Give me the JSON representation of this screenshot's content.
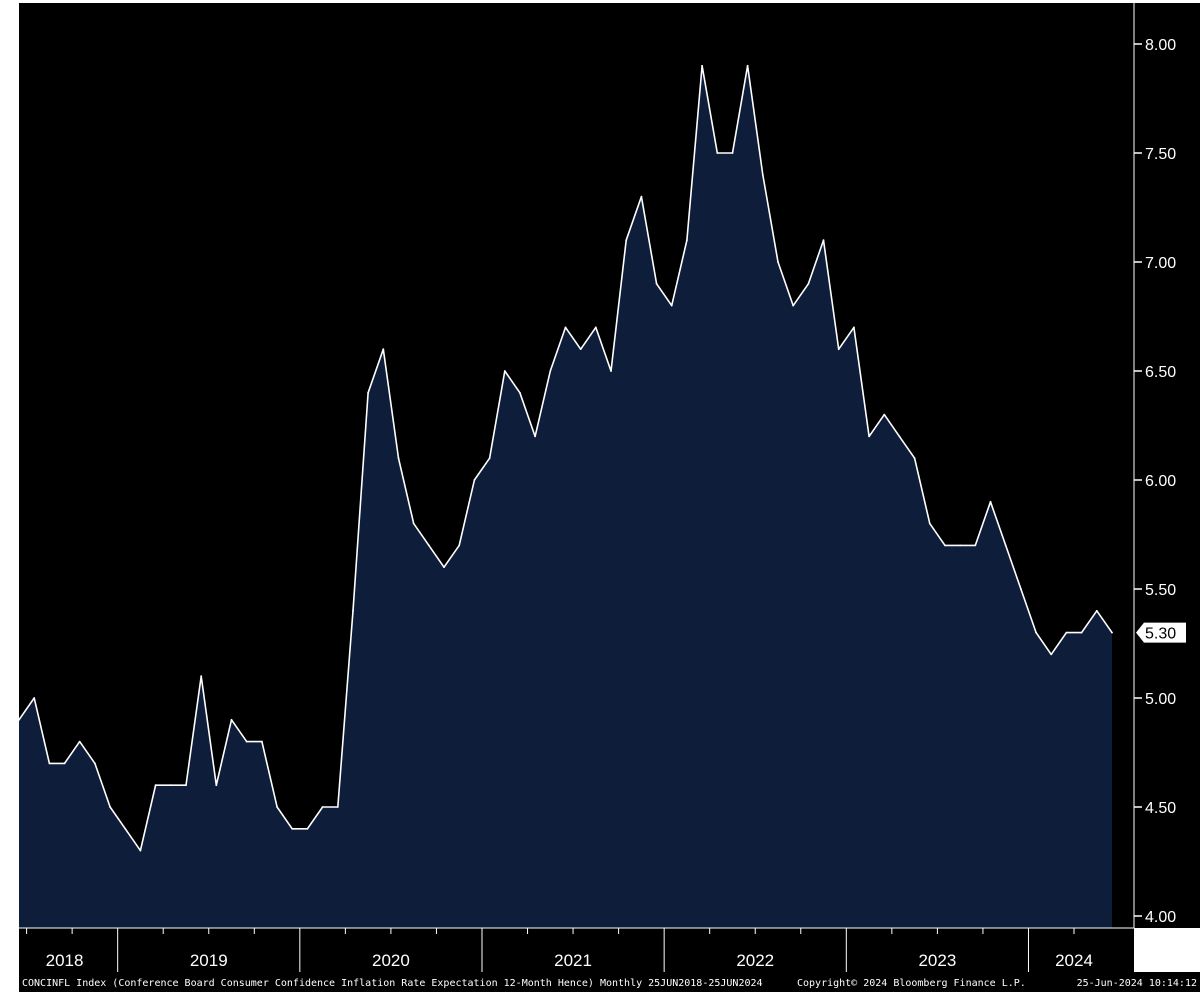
{
  "chart_data": {
    "type": "area",
    "title": "",
    "xlabel": "",
    "ylabel": "",
    "ylim": [
      4.0,
      8.0
    ],
    "yticks": [
      "8.00",
      "7.50",
      "7.00",
      "6.50",
      "6.00",
      "5.50",
      "5.00",
      "4.50",
      "4.00"
    ],
    "xlim": [
      "2018-06",
      "2024-06"
    ],
    "year_labels": [
      "2018",
      "2019",
      "2020",
      "2021",
      "2022",
      "2023",
      "2024"
    ],
    "last_value_label": "5.30",
    "grid": false,
    "legend": "none",
    "colors": {
      "background": "#000000",
      "area_fill": "#0e1d3a",
      "line": "#ffffff",
      "axis_bg": "#000000",
      "frame": "#ffffff"
    },
    "x": [
      "2018-06",
      "2018-07",
      "2018-08",
      "2018-09",
      "2018-10",
      "2018-11",
      "2018-12",
      "2019-01",
      "2019-02",
      "2019-03",
      "2019-04",
      "2019-05",
      "2019-06",
      "2019-07",
      "2019-08",
      "2019-09",
      "2019-10",
      "2019-11",
      "2019-12",
      "2020-01",
      "2020-02",
      "2020-03",
      "2020-04",
      "2020-05",
      "2020-06",
      "2020-07",
      "2020-08",
      "2020-09",
      "2020-10",
      "2020-11",
      "2020-12",
      "2021-01",
      "2021-02",
      "2021-03",
      "2021-04",
      "2021-05",
      "2021-06",
      "2021-07",
      "2021-08",
      "2021-09",
      "2021-10",
      "2021-11",
      "2021-12",
      "2022-01",
      "2022-02",
      "2022-03",
      "2022-04",
      "2022-05",
      "2022-06",
      "2022-07",
      "2022-08",
      "2022-09",
      "2022-10",
      "2022-11",
      "2022-12",
      "2023-01",
      "2023-02",
      "2023-03",
      "2023-04",
      "2023-05",
      "2023-06",
      "2023-07",
      "2023-08",
      "2023-09",
      "2023-10",
      "2023-11",
      "2023-12",
      "2024-01",
      "2024-02",
      "2024-03",
      "2024-04",
      "2024-05",
      "2024-06"
    ],
    "values": [
      4.9,
      5.0,
      4.7,
      4.7,
      4.8,
      4.7,
      4.5,
      4.4,
      4.3,
      4.6,
      4.6,
      4.6,
      5.1,
      4.6,
      4.9,
      4.8,
      4.8,
      4.5,
      4.4,
      4.4,
      4.5,
      4.5,
      5.4,
      6.4,
      6.6,
      6.1,
      5.8,
      5.7,
      5.6,
      5.7,
      6.0,
      6.1,
      6.5,
      6.4,
      6.2,
      6.5,
      6.7,
      6.6,
      6.7,
      6.5,
      7.1,
      7.3,
      6.9,
      6.8,
      7.1,
      7.9,
      7.5,
      7.5,
      7.9,
      7.4,
      7.0,
      6.8,
      6.9,
      7.1,
      6.6,
      6.7,
      6.2,
      6.3,
      6.2,
      6.1,
      5.8,
      5.7,
      5.7,
      5.7,
      5.9,
      5.7,
      5.5,
      5.3,
      5.2,
      5.3,
      5.3,
      5.4,
      5.3
    ]
  },
  "footer": {
    "description": "CONCINFL Index (Conference Board Consumer Confidence Inflation Rate Expectation 12-Month Hence) Monthly 25JUN2018-25JUN2024",
    "copyright": "Copyright© 2024 Bloomberg Finance L.P.",
    "timestamp": "25-Jun-2024 10:14:12"
  }
}
